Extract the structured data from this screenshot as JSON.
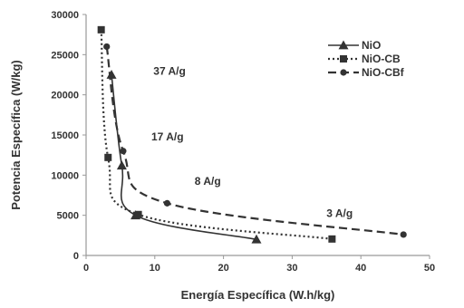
{
  "chart_data": {
    "type": "line",
    "title": "",
    "xlabel": "Energía Específica (W.h/kg)",
    "ylabel": "Potencia Específica (W/kg)",
    "xlim": [
      0,
      50
    ],
    "ylim": [
      0,
      30000
    ],
    "x_ticks": [
      0,
      10,
      20,
      30,
      40,
      50
    ],
    "y_ticks": [
      0,
      5000,
      10000,
      15000,
      20000,
      25000,
      30000
    ],
    "x_tick_labels": [
      "0",
      "10",
      "20",
      "30",
      "40",
      "50"
    ],
    "y_tick_labels": [
      "0",
      "5000",
      "10000",
      "15000",
      "20000",
      "25000",
      "30000"
    ],
    "legend_position": "top-right",
    "grid": false,
    "series": [
      {
        "name": "NiO",
        "style": "solid",
        "marker": "triangle",
        "color": "#333333",
        "points": [
          [
            3.7,
            22500
          ],
          [
            5.2,
            11200
          ],
          [
            7.2,
            5000
          ],
          [
            24.8,
            2000
          ]
        ]
      },
      {
        "name": "NiO-CB",
        "style": "dotted",
        "marker": "square",
        "color": "#333333",
        "points": [
          [
            2.2,
            28100
          ],
          [
            3.2,
            12200
          ],
          [
            7.6,
            5100
          ],
          [
            35.8,
            2050
          ]
        ]
      },
      {
        "name": "NiO-CBf",
        "style": "dashed",
        "marker": "circle",
        "color": "#333333",
        "points": [
          [
            3.0,
            26000
          ],
          [
            5.4,
            13000
          ],
          [
            11.8,
            6500
          ],
          [
            46.2,
            2600
          ]
        ]
      }
    ],
    "annotations": [
      {
        "text": "37 A/g",
        "x": 9.8,
        "y": 22500
      },
      {
        "text": "17 A/g",
        "x": 9.5,
        "y": 14300
      },
      {
        "text": "8 A/g",
        "x": 15.8,
        "y": 8800
      },
      {
        "text": "3 A/g",
        "x": 35.0,
        "y": 4800
      }
    ]
  }
}
